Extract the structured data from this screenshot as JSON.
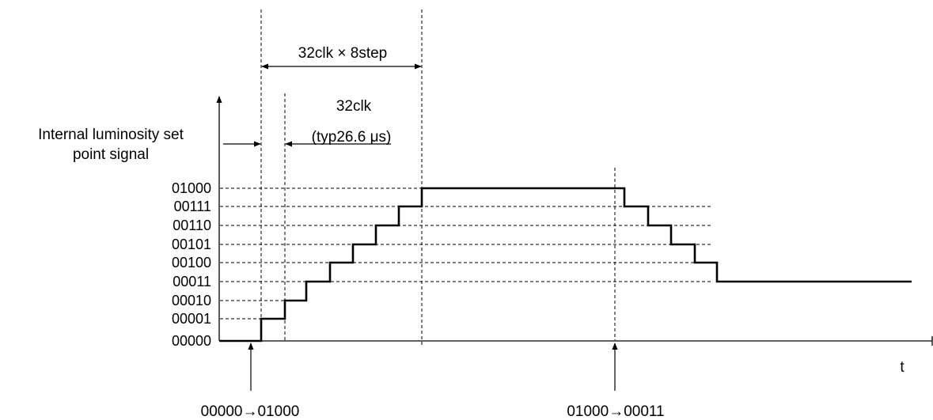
{
  "signal_label_line1": "Internal luminosity set",
  "signal_label_line2": "point signal",
  "t_label": "t",
  "dim_total": "32clk × 8step",
  "dim_step": "32clk",
  "dim_step_time": "(typ26.6 μs)",
  "event_up": "00000→01000",
  "event_down": "01000→00011",
  "levels": [
    "00000",
    "00001",
    "00010",
    "00011",
    "00100",
    "00101",
    "00110",
    "00111",
    "01000"
  ],
  "steps_up": [
    "00000",
    "00001",
    "00010",
    "00011",
    "00100",
    "00101",
    "00110",
    "00111",
    "01000"
  ],
  "steps_down": [
    "01000",
    "00111",
    "00110",
    "00101",
    "00100",
    "00011"
  ]
}
